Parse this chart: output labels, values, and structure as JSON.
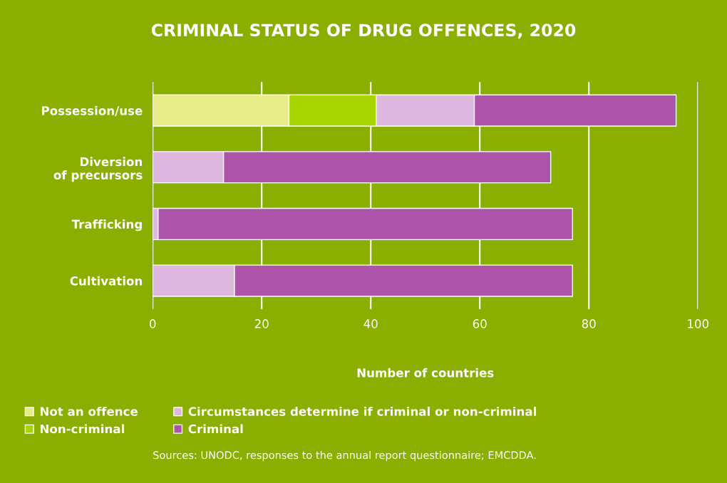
{
  "chart_data": {
    "type": "bar",
    "orientation": "horizontal",
    "stacked": true,
    "title": "CRIMINAL STATUS OF DRUG OFFENCES, 2020",
    "categories": [
      "Possession/use",
      "Diversion\nof precursors",
      "Trafficking",
      "Cultivation"
    ],
    "series": [
      {
        "name": "Not an offence",
        "color": "#e6ec88",
        "values": [
          25,
          0,
          0,
          0
        ]
      },
      {
        "name": "Non-criminal",
        "color": "#a8d400",
        "values": [
          16,
          0,
          0,
          0
        ]
      },
      {
        "name": "Circumstances determine if criminal or non-criminal",
        "color": "#dfb8e0",
        "values": [
          18,
          13,
          1,
          15
        ]
      },
      {
        "name": "Criminal",
        "color": "#ac55a8",
        "values": [
          37,
          60,
          76,
          62
        ]
      }
    ],
    "xlim": [
      0,
      100
    ],
    "xticks": [
      0,
      20,
      40,
      60,
      80,
      100
    ],
    "xlabel": "Number of countries",
    "grid": "x",
    "legend": "bottom",
    "annotations": [
      "Sources: UNODC, responses to the annual report questionnaire; EMCDDA."
    ]
  }
}
